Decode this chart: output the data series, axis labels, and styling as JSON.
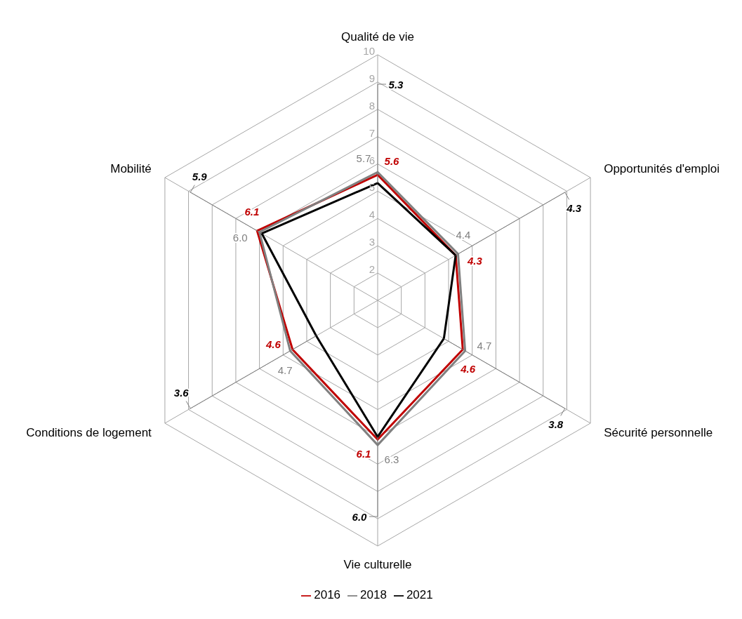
{
  "chart_data": {
    "type": "radar",
    "categories": [
      "Qualité de vie",
      "Opportunités d'emploi",
      "Sécurité personnelle",
      "Vie culturelle",
      "Conditions de logement",
      "Mobilité"
    ],
    "series": [
      {
        "name": "2016",
        "color": "#c00000",
        "values": [
          5.6,
          4.3,
          4.6,
          6.1,
          4.6,
          6.1
        ],
        "value_labels": [
          "5.6",
          "4.3",
          "4.6",
          "6.1",
          "4.6",
          "6.1"
        ]
      },
      {
        "name": "2018",
        "color": "#808080",
        "values": [
          5.7,
          4.4,
          4.7,
          6.3,
          4.7,
          6.0
        ],
        "value_labels": [
          "5.7",
          "4.4",
          "4.7",
          "6.3",
          "4.7",
          "6.0"
        ]
      },
      {
        "name": "2021",
        "color": "#000000",
        "values": [
          5.3,
          4.3,
          3.8,
          6.0,
          3.6,
          5.9
        ],
        "value_labels": [
          "5.3",
          "4.3",
          "3.8",
          "6.0",
          "3.6",
          "5.9"
        ]
      }
    ],
    "ylim": [
      1,
      10
    ],
    "yticks": [
      2,
      3,
      4,
      5,
      6,
      7,
      8,
      9,
      10
    ],
    "grid": true,
    "legend": "bottom"
  }
}
